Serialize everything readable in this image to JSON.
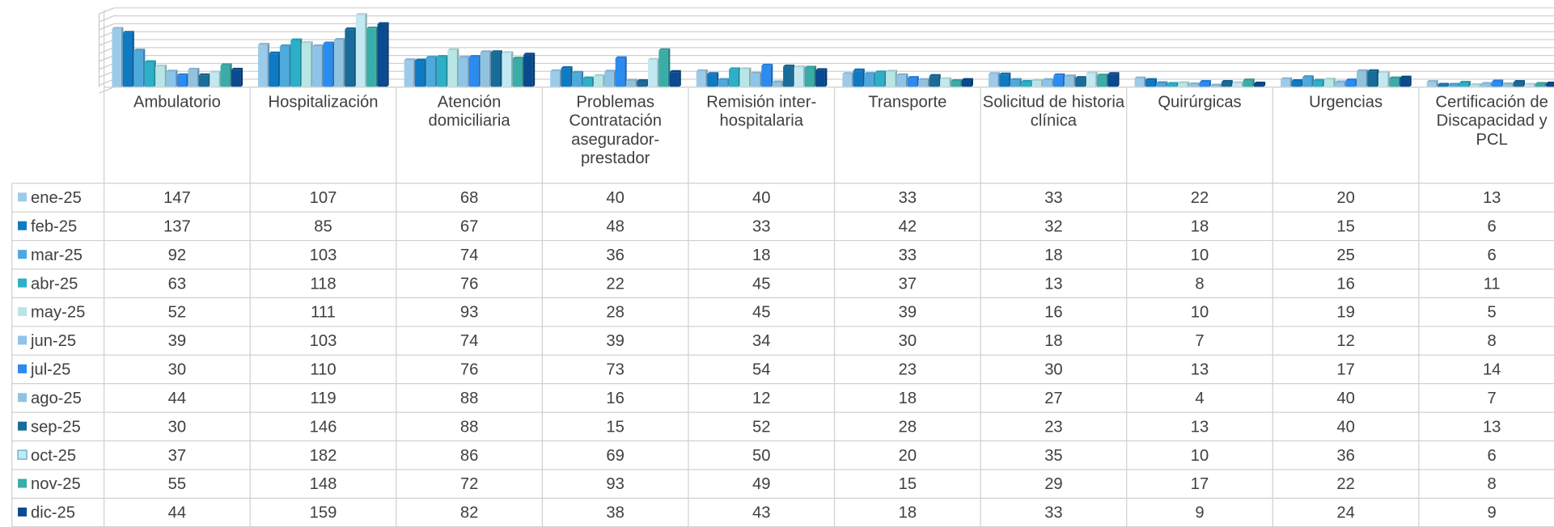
{
  "chart_data": {
    "type": "bar3d_table",
    "categories": [
      "Ambulatorio",
      "Hospitalización",
      "Atención domiciliaria",
      "Problemas Contratación asegurador-prestador",
      "Remisión inter-hospitalaria",
      "Transporte",
      "Solicitud de historia clínica",
      "Quirúrgicas",
      "Urgencias",
      "Certificación de Discapacidad y PCL"
    ],
    "ylim": [
      0,
      200
    ],
    "yticks": [
      0,
      20,
      40,
      60,
      80,
      100,
      120,
      140,
      160,
      180,
      200
    ],
    "grid": true,
    "series": [
      {
        "name": "ene-25",
        "color": "#9ccbea",
        "values": [
          147,
          107,
          68,
          40,
          40,
          33,
          33,
          22,
          20,
          13
        ]
      },
      {
        "name": "feb-25",
        "color": "#0f7ac4",
        "values": [
          137,
          85,
          67,
          48,
          33,
          42,
          32,
          18,
          15,
          6
        ]
      },
      {
        "name": "mar-25",
        "color": "#4ea9dd",
        "values": [
          92,
          103,
          74,
          36,
          18,
          33,
          18,
          10,
          25,
          6
        ]
      },
      {
        "name": "abr-25",
        "color": "#2bb0c8",
        "values": [
          63,
          118,
          76,
          22,
          45,
          37,
          13,
          8,
          16,
          11
        ]
      },
      {
        "name": "may-25",
        "color": "#b8e6e6",
        "values": [
          52,
          111,
          93,
          28,
          45,
          39,
          16,
          10,
          19,
          5
        ]
      },
      {
        "name": "jun-25",
        "color": "#8ec4e8",
        "values": [
          39,
          103,
          74,
          39,
          34,
          30,
          18,
          7,
          12,
          8
        ]
      },
      {
        "name": "jul-25",
        "color": "#2a8bf0",
        "values": [
          30,
          110,
          76,
          73,
          54,
          23,
          30,
          13,
          17,
          14
        ]
      },
      {
        "name": "ago-25",
        "color": "#91c3df",
        "values": [
          44,
          119,
          88,
          16,
          12,
          18,
          27,
          4,
          40,
          7
        ]
      },
      {
        "name": "sep-25",
        "color": "#176c99",
        "values": [
          30,
          146,
          88,
          15,
          52,
          28,
          23,
          13,
          40,
          13
        ]
      },
      {
        "name": "oct-25",
        "color": "#c2e9f1",
        "values": [
          37,
          182,
          86,
          69,
          50,
          20,
          35,
          10,
          36,
          6
        ]
      },
      {
        "name": "nov-25",
        "color": "#3aada8",
        "values": [
          55,
          148,
          72,
          93,
          49,
          15,
          29,
          17,
          22,
          8
        ]
      },
      {
        "name": "dic-25",
        "color": "#0a4a90",
        "values": [
          44,
          159,
          82,
          38,
          43,
          18,
          33,
          9,
          24,
          9
        ]
      }
    ]
  }
}
